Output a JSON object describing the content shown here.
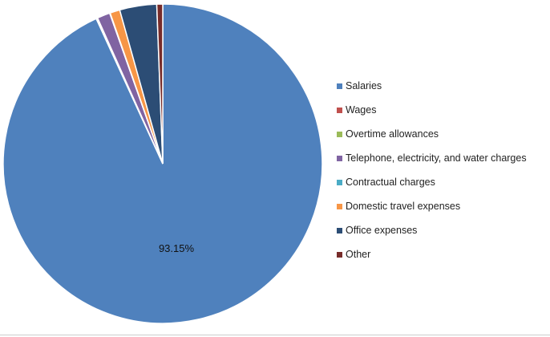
{
  "chart_data": {
    "type": "pie",
    "labels": [
      "Salaries",
      "Wages",
      "Overtime allowances",
      "Telephone, electricity, and water charges",
      "Contractual charges",
      "Domestic travel expenses",
      "Office expenses",
      "Other"
    ],
    "values": [
      93.15,
      0.05,
      0.1,
      1.3,
      0.05,
      1.0,
      3.75,
      0.6
    ],
    "colors": [
      "#4F81BD",
      "#C0504D",
      "#9BBB59",
      "#8064A2",
      "#4BACC6",
      "#F79646",
      "#2C4D75",
      "#772C2A"
    ],
    "data_labels": [
      "93.15%"
    ],
    "legend_position": "right"
  }
}
